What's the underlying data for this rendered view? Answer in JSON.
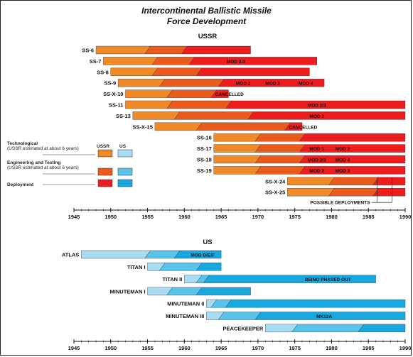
{
  "title": "Intercontinental Ballistic Missile",
  "subtitle": "Force Development",
  "colors": {
    "ussr_tech": "#f08a28",
    "ussr_eng": "#ea5a1c",
    "ussr_dep": "#ee1c1c",
    "us_tech": "#a8dcf2",
    "us_eng": "#58c4ec",
    "us_dep": "#18a8e0"
  },
  "legend": {
    "col_ussr": "USSR",
    "col_us": "US",
    "tech_label": "Technological",
    "tech_sub": "(USSR estimated at about 6 years)",
    "eng_label": "Engineering and Testing",
    "eng_sub": "(USSR estimated at about 6 years)",
    "dep_label": "Deployment"
  },
  "possible_deployments": "POSSIBLE DEPLOYMENTS",
  "chart_data": [
    {
      "type": "bar",
      "title": "USSR",
      "xlim": [
        1945,
        1990
      ],
      "x_ticks": [
        1945,
        1950,
        1955,
        1960,
        1965,
        1970,
        1975,
        1980,
        1985,
        1990
      ],
      "series_names": [
        "Technological",
        "Engineering and Testing",
        "Deployment"
      ],
      "rows": [
        {
          "name": "SS-6",
          "tech": [
            1948,
            1955
          ],
          "eng": [
            1955,
            1960
          ],
          "dep": [
            1960,
            1969
          ],
          "annotations": []
        },
        {
          "name": "SS-7",
          "tech": [
            1949,
            1956
          ],
          "eng": [
            1956,
            1961
          ],
          "dep": [
            1961,
            1978
          ],
          "annotations": [
            {
              "text": "MOD 2/3",
              "x": 1967
            }
          ]
        },
        {
          "name": "SS-8",
          "tech": [
            1950,
            1956
          ],
          "eng": [
            1956,
            1962
          ],
          "dep": [
            1962,
            1977
          ],
          "annotations": []
        },
        {
          "name": "SS-9",
          "tech": [
            1951,
            1957
          ],
          "eng": [
            1957,
            1965
          ],
          "dep": [
            1965,
            1979
          ],
          "annotations": [
            {
              "text": "MOD 2",
              "x": 1968
            },
            {
              "text": "MOD 3",
              "x": 1972
            },
            {
              "text": "MOD 4",
              "x": 1976.5
            }
          ]
        },
        {
          "name": "SS-X-10",
          "tech": [
            1952,
            1958
          ],
          "eng": [
            1958,
            1964
          ],
          "dep": [
            1964,
            1966
          ],
          "cancelled": true,
          "cancelled_text": "CANCELLED",
          "annotations": []
        },
        {
          "name": "SS-11",
          "tech": [
            1952,
            1958
          ],
          "eng": [
            1958,
            1966
          ],
          "dep": [
            1966,
            1990
          ],
          "annotations": [
            {
              "text": "MOD 2/3",
              "x": 1978
            }
          ]
        },
        {
          "name": "SS-13",
          "tech": [
            1953,
            1959
          ],
          "eng": [
            1959,
            1969
          ],
          "dep": [
            1969,
            1990
          ],
          "annotations": [
            {
              "text": "MOD 2",
              "x": 1978
            }
          ]
        },
        {
          "name": "SS-X-15",
          "tech": [
            1956,
            1962
          ],
          "eng": [
            1962,
            1974
          ],
          "dep": [
            1974,
            1976
          ],
          "cancelled": true,
          "cancelled_text": "CANCELLED",
          "annotations": []
        },
        {
          "name": "SS-16",
          "tech": [
            1964,
            1970
          ],
          "eng": [
            1970,
            1976
          ],
          "dep": [
            1976,
            1990
          ],
          "annotations": []
        },
        {
          "name": "SS-17",
          "tech": [
            1964,
            1970
          ],
          "eng": [
            1970,
            1976
          ],
          "dep": [
            1976,
            1990
          ],
          "annotations": [
            {
              "text": "MOD 1",
              "x": 1978
            },
            {
              "text": "MOD 2",
              "x": 1981.5
            }
          ]
        },
        {
          "name": "SS-18",
          "tech": [
            1964,
            1970
          ],
          "eng": [
            1970,
            1976
          ],
          "dep": [
            1976,
            1990
          ],
          "annotations": [
            {
              "text": "MOD 2/3",
              "x": 1978
            },
            {
              "text": "MOD 4",
              "x": 1981.5
            }
          ]
        },
        {
          "name": "SS-19",
          "tech": [
            1964,
            1970
          ],
          "eng": [
            1970,
            1976
          ],
          "dep": [
            1976,
            1990
          ],
          "annotations": [
            {
              "text": "MOD 2",
              "x": 1978
            },
            {
              "text": "MOD 3",
              "x": 1981.5
            }
          ]
        },
        {
          "name": "SS-X-24",
          "tech": [
            1974,
            1980
          ],
          "eng": [
            1980,
            1986
          ],
          "dep": [
            1986,
            1990
          ],
          "annotations": []
        },
        {
          "name": "SS-X-25",
          "tech": [
            1974,
            1980
          ],
          "eng": [
            1980,
            1986
          ],
          "dep": [
            1986,
            1990
          ],
          "annotations": []
        }
      ]
    },
    {
      "type": "bar",
      "title": "US",
      "xlim": [
        1945,
        1990
      ],
      "x_ticks": [
        1945,
        1950,
        1955,
        1960,
        1965,
        1970,
        1975,
        1980,
        1985,
        1990
      ],
      "series_names": [
        "Technological",
        "Engineering and Testing",
        "Deployment"
      ],
      "rows": [
        {
          "name": "ATLAS",
          "tech": [
            1946,
            1955
          ],
          "eng": [
            1955,
            1959
          ],
          "dep": [
            1959,
            1965
          ],
          "annotations": [
            {
              "text": "MOD D/E/F",
              "x": 1962.5
            }
          ]
        },
        {
          "name": "TITAN I",
          "tech": [
            1955,
            1957
          ],
          "eng": [
            1957,
            1962
          ],
          "dep": [
            1962,
            1965
          ],
          "annotations": []
        },
        {
          "name": "TITAN II",
          "tech": [
            1960,
            1962
          ],
          "eng": [
            1962,
            1963
          ],
          "dep": [
            1963,
            1986
          ],
          "annotations": [
            {
              "text": "BEING PHASED OUT",
              "x": 1979.5
            }
          ]
        },
        {
          "name": "MINUTEMAN I",
          "tech": [
            1955,
            1958
          ],
          "eng": [
            1958,
            1962
          ],
          "dep": [
            1962,
            1969
          ],
          "annotations": []
        },
        {
          "name": "MINUTEMAN II",
          "tech": [
            1963,
            1964
          ],
          "eng": [
            1964,
            1966
          ],
          "dep": [
            1966,
            1990
          ],
          "annotations": []
        },
        {
          "name": "MINUTEMAN III",
          "tech": [
            1963,
            1965
          ],
          "eng": [
            1965,
            1970
          ],
          "dep": [
            1970,
            1990
          ],
          "annotations": [
            {
              "text": "MK12A",
              "x": 1979
            }
          ]
        },
        {
          "name": "PEACEKEEPER",
          "tech": [
            1971,
            1975
          ],
          "eng": [
            1975,
            1984
          ],
          "dep": [
            1984,
            1990
          ],
          "annotations": []
        }
      ]
    }
  ]
}
